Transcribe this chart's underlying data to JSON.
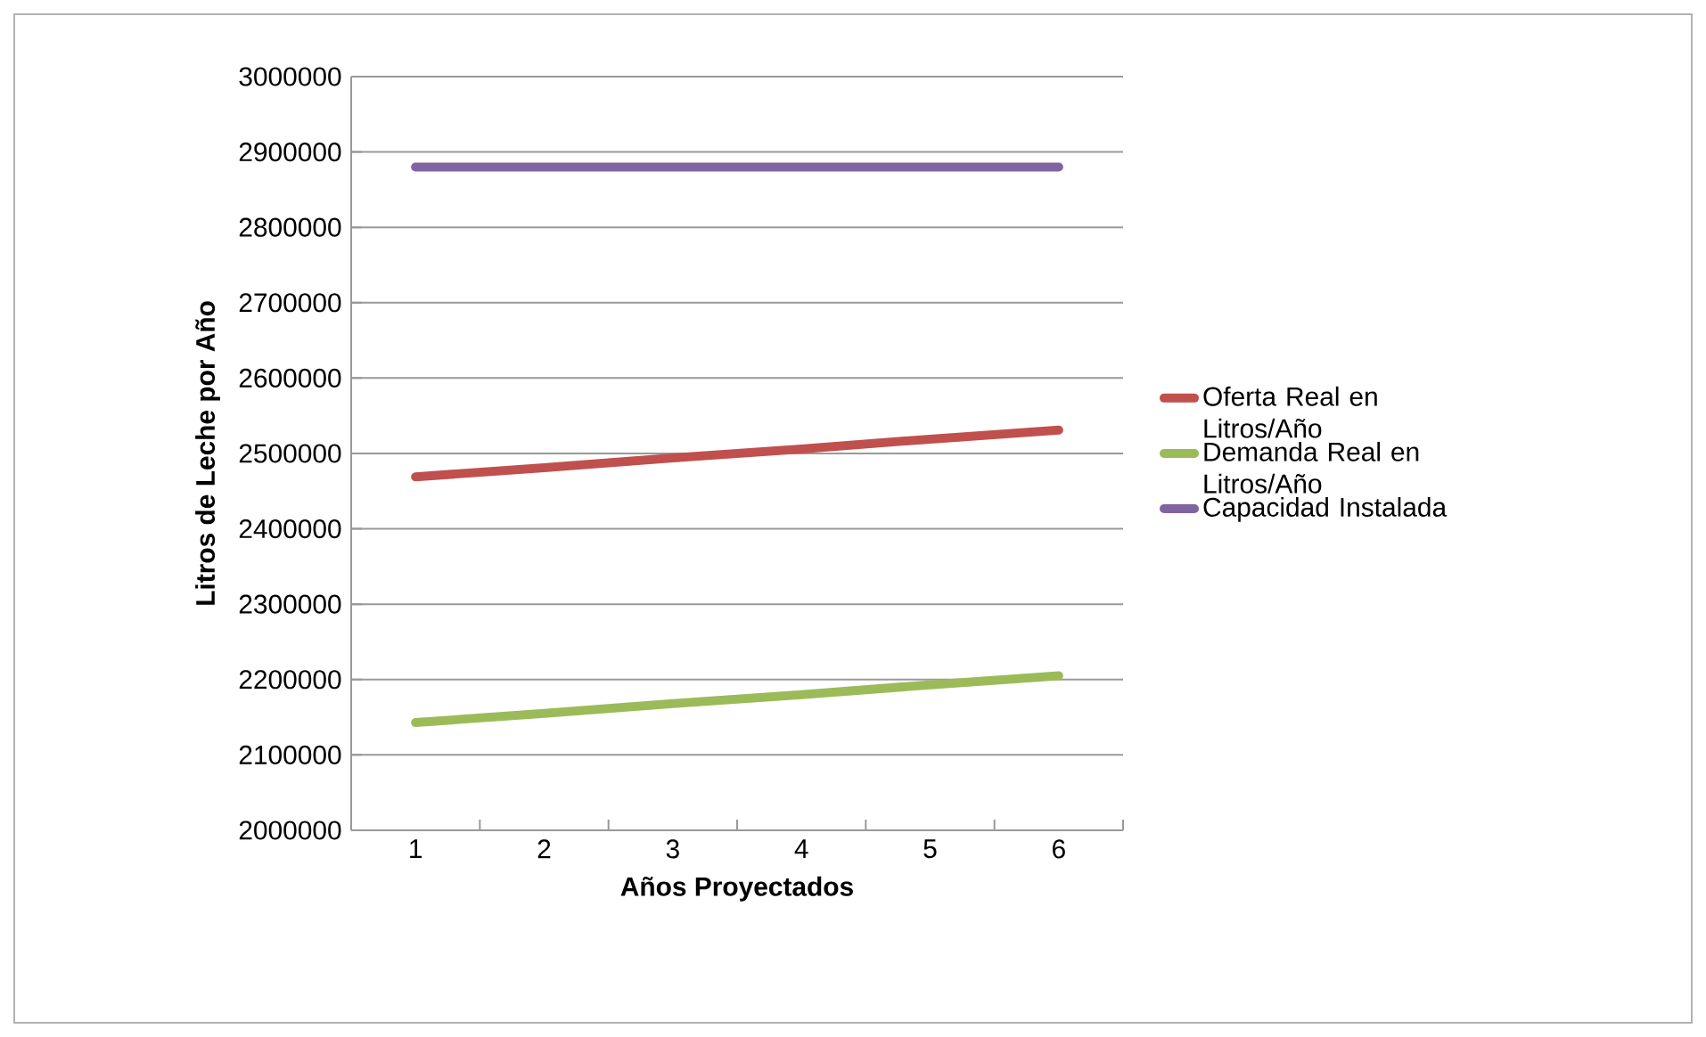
{
  "chart_data": {
    "type": "line",
    "xlabel": "Años Proyectados",
    "ylabel": "Litros de Leche por Año",
    "categories": [
      "1",
      "2",
      "3",
      "4",
      "5",
      "6"
    ],
    "series": [
      {
        "name": "Oferta Real en Litros/Año",
        "color": "#c0504d",
        "values": [
          2469000,
          2481000,
          2494000,
          2506000,
          2519000,
          2531000
        ]
      },
      {
        "name": "Demanda Real en Litros/Año",
        "color": "#9bbb59",
        "values": [
          2143000,
          2155000,
          2168000,
          2180000,
          2193000,
          2205000
        ]
      },
      {
        "name": "Capacidad Instalada",
        "color": "#8064a2",
        "values": [
          2880000,
          2880000,
          2880000,
          2880000,
          2880000,
          2880000
        ]
      }
    ],
    "ylim": [
      2000000,
      3000000
    ],
    "yticks": [
      2000000,
      2100000,
      2200000,
      2300000,
      2400000,
      2500000,
      2600000,
      2700000,
      2800000,
      2900000,
      3000000
    ],
    "grid": "y",
    "legend": "right",
    "marker": "none",
    "line_style": "solid"
  }
}
